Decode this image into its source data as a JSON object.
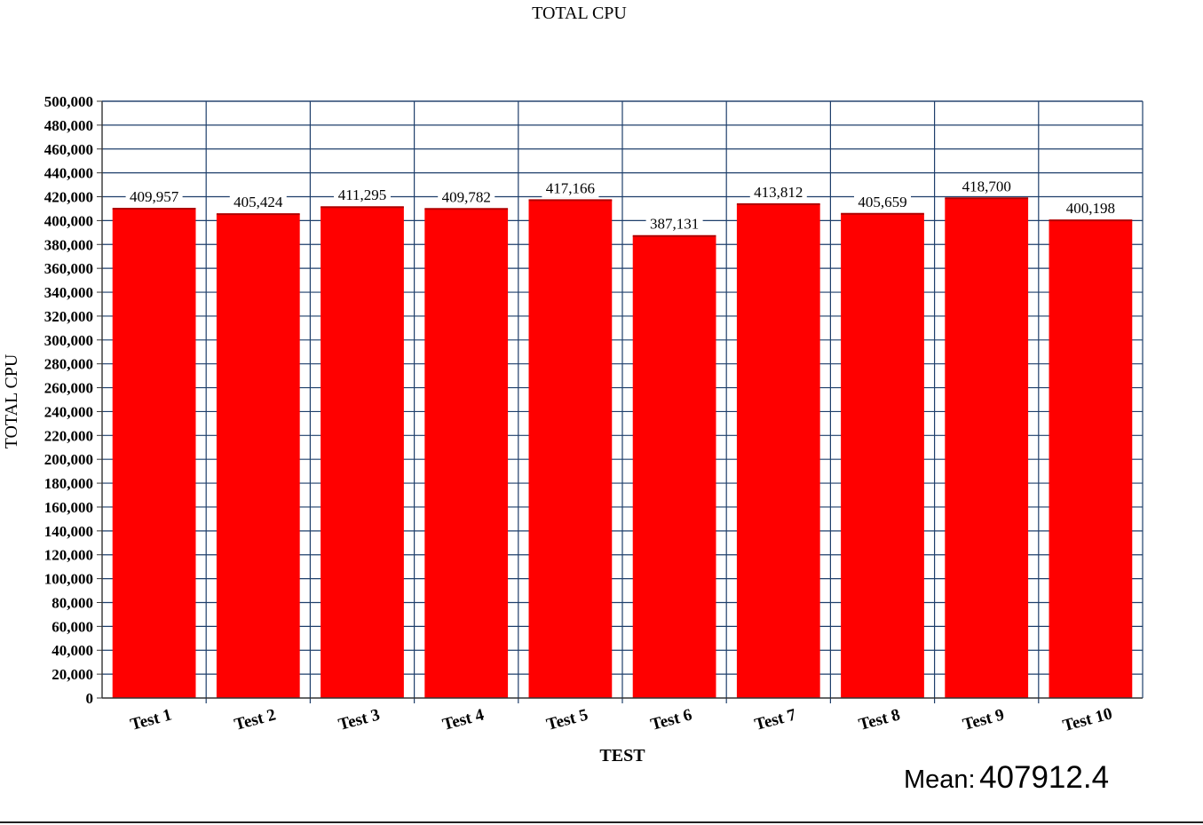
{
  "chart_data": {
    "type": "bar",
    "title": "TOTAL CPU",
    "xlabel": "TEST",
    "ylabel": "TOTAL CPU",
    "categories": [
      "Test 1",
      "Test 2",
      "Test 3",
      "Test 4",
      "Test 5",
      "Test 6",
      "Test 7",
      "Test 8",
      "Test 9",
      "Test 10"
    ],
    "values": [
      409957,
      405424,
      411295,
      409782,
      417166,
      387131,
      413812,
      405659,
      418700,
      400198
    ],
    "value_labels": [
      "409,957",
      "405,424",
      "411,295",
      "409,782",
      "417,166",
      "387,131",
      "413,812",
      "405,659",
      "418,700",
      "400,198"
    ],
    "ylim": [
      0,
      500000
    ],
    "yticks": [
      0,
      20000,
      40000,
      60000,
      80000,
      100000,
      120000,
      140000,
      160000,
      180000,
      200000,
      220000,
      240000,
      260000,
      280000,
      300000,
      320000,
      340000,
      360000,
      380000,
      400000,
      420000,
      440000,
      460000,
      480000,
      500000
    ],
    "ytick_labels": [
      "0",
      "20,000",
      "40,000",
      "60,000",
      "80,000",
      "100,000",
      "120,000",
      "140,000",
      "160,000",
      "180,000",
      "200,000",
      "220,000",
      "240,000",
      "260,000",
      "280,000",
      "300,000",
      "320,000",
      "340,000",
      "360,000",
      "380,000",
      "400,000",
      "420,000",
      "440,000",
      "460,000",
      "480,000",
      "500,000"
    ],
    "grid": true,
    "bar_color": "#ff0000",
    "grid_color": "#1f3f6b"
  },
  "mean": {
    "label": "Mean:",
    "value": "407912.4"
  }
}
